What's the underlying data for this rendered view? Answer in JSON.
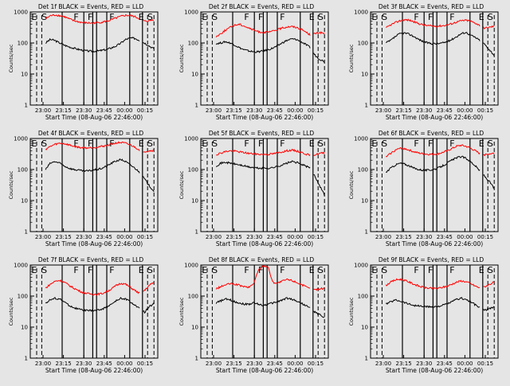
{
  "colors": {
    "background": "#e5e5e5",
    "events": "#000000",
    "lld": "#ff0000",
    "frame": "#000000"
  },
  "layout": {
    "rows": 3,
    "cols": 3
  },
  "segment_marks": [
    "E",
    "S",
    "F",
    "F",
    "F",
    "E",
    "S"
  ],
  "chart_data": [
    {
      "type": "line",
      "title": "Det 1f BLACK = Events, RED = LLD",
      "xlabel": "Start Time (08-Aug-06 22:46:00)",
      "ylabel": "Counts/sec",
      "xticklabels": [
        "23:00",
        "23:15",
        "23:30",
        "23:45",
        "00:00",
        "00:15"
      ],
      "yticklabels": [
        "1",
        "10",
        "100",
        "1000"
      ],
      "yscale": "log",
      "ylim": [
        1,
        1000
      ],
      "series": [
        {
          "name": "Events",
          "color": "#000000",
          "profile": [
            100,
            130,
            120,
            100,
            85,
            75,
            68,
            62,
            58,
            55,
            54,
            55,
            58,
            62,
            70,
            80,
            100,
            130,
            145,
            140,
            120,
            100,
            80,
            65
          ]
        },
        {
          "name": "LLD",
          "color": "#ff0000",
          "profile": [
            600,
            750,
            800,
            760,
            700,
            600,
            520,
            480,
            450,
            440,
            440,
            450,
            470,
            500,
            560,
            640,
            720,
            780,
            760,
            700,
            600,
            500,
            520,
            560
          ]
        }
      ]
    },
    {
      "type": "line",
      "title": "Det 2f BLACK = Events, RED = LLD",
      "xlabel": "Start Time (08-Aug-06 22:46:00)",
      "ylabel": "Counts/sec",
      "xticklabels": [
        "23:00",
        "23:15",
        "23:30",
        "23:45",
        "00:00",
        "00:15"
      ],
      "yticklabels": [
        "1",
        "10",
        "100",
        "1000"
      ],
      "yscale": "log",
      "ylim": [
        1,
        1000
      ],
      "series": [
        {
          "name": "Events",
          "color": "#000000",
          "profile": [
            95,
            100,
            110,
            100,
            85,
            70,
            60,
            55,
            52,
            52,
            55,
            60,
            68,
            80,
            100,
            120,
            135,
            130,
            110,
            90,
            70,
            40,
            30,
            25
          ]
        },
        {
          "name": "LLD",
          "color": "#ff0000",
          "profile": [
            160,
            200,
            260,
            320,
            380,
            400,
            350,
            300,
            260,
            230,
            220,
            220,
            240,
            270,
            300,
            330,
            340,
            320,
            280,
            230,
            180,
            200,
            220,
            200
          ]
        }
      ]
    },
    {
      "type": "line",
      "title": "Det 3f BLACK = Events, RED = LLD",
      "xlabel": "Start Time (08-Aug-06 22:46:00)",
      "ylabel": "Counts/sec",
      "xticklabels": [
        "23:00",
        "23:15",
        "23:30",
        "23:45",
        "00:00",
        "00:15"
      ],
      "yticklabels": [
        "1",
        "10",
        "100",
        "1000"
      ],
      "yscale": "log",
      "ylim": [
        1,
        1000
      ],
      "series": [
        {
          "name": "Events",
          "color": "#000000",
          "profile": [
            100,
            120,
            160,
            200,
            210,
            190,
            160,
            130,
            110,
            100,
            95,
            95,
            100,
            110,
            130,
            160,
            200,
            220,
            180,
            150,
            120,
            90,
            60,
            40
          ]
        },
        {
          "name": "LLD",
          "color": "#ff0000",
          "profile": [
            300,
            380,
            450,
            520,
            560,
            540,
            480,
            420,
            380,
            360,
            350,
            350,
            360,
            380,
            420,
            470,
            520,
            540,
            500,
            440,
            360,
            300,
            320,
            350
          ]
        }
      ]
    },
    {
      "type": "line",
      "title": "Det 4f BLACK = Events, RED = LLD",
      "xlabel": "Start Time (08-Aug-06 22:46:00)",
      "ylabel": "Counts/sec",
      "xticklabels": [
        "23:00",
        "23:15",
        "23:30",
        "23:45",
        "00:00",
        "00:15"
      ],
      "yticklabels": [
        "1",
        "10",
        "100",
        "1000"
      ],
      "yscale": "log",
      "ylim": [
        1,
        1000
      ],
      "series": [
        {
          "name": "Events",
          "color": "#000000",
          "profile": [
            100,
            160,
            180,
            160,
            130,
            110,
            100,
            95,
            90,
            90,
            95,
            100,
            110,
            130,
            160,
            190,
            210,
            180,
            140,
            110,
            80,
            50,
            30,
            20
          ]
        },
        {
          "name": "LLD",
          "color": "#ff0000",
          "profile": [
            450,
            550,
            650,
            700,
            680,
            620,
            560,
            520,
            500,
            500,
            510,
            530,
            560,
            600,
            660,
            720,
            740,
            700,
            620,
            520,
            420,
            380,
            400,
            420
          ]
        }
      ]
    },
    {
      "type": "line",
      "title": "Det 5f BLACK = Events, RED = LLD",
      "xlabel": "Start Time (08-Aug-06 22:46:00)",
      "ylabel": "Counts/sec",
      "xticklabels": [
        "23:00",
        "23:15",
        "23:30",
        "23:45",
        "00:00",
        "00:15"
      ],
      "yticklabels": [
        "1",
        "10",
        "100",
        "1000"
      ],
      "yscale": "log",
      "ylim": [
        1,
        1000
      ],
      "series": [
        {
          "name": "Events",
          "color": "#000000",
          "profile": [
            130,
            160,
            170,
            160,
            150,
            140,
            130,
            120,
            115,
            110,
            110,
            110,
            115,
            125,
            140,
            160,
            180,
            170,
            150,
            130,
            110,
            60,
            30,
            15
          ]
        },
        {
          "name": "LLD",
          "color": "#ff0000",
          "profile": [
            300,
            340,
            380,
            400,
            390,
            370,
            350,
            330,
            320,
            310,
            310,
            310,
            320,
            340,
            370,
            400,
            420,
            400,
            360,
            320,
            280,
            300,
            330,
            350
          ]
        }
      ]
    },
    {
      "type": "line",
      "title": "Det 6f BLACK = Events, RED = LLD",
      "xlabel": "Start Time (08-Aug-06 22:46:00)",
      "ylabel": "Counts/sec",
      "xticklabels": [
        "23:00",
        "23:15",
        "23:30",
        "23:45",
        "00:00",
        "00:15"
      ],
      "yticklabels": [
        "1",
        "10",
        "100",
        "1000"
      ],
      "yscale": "log",
      "ylim": [
        1,
        1000
      ],
      "series": [
        {
          "name": "Events",
          "color": "#000000",
          "profile": [
            80,
            110,
            140,
            160,
            150,
            130,
            110,
            100,
            95,
            95,
            100,
            110,
            130,
            160,
            200,
            240,
            260,
            230,
            180,
            130,
            90,
            60,
            40,
            25
          ]
        },
        {
          "name": "LLD",
          "color": "#ff0000",
          "profile": [
            250,
            330,
            420,
            480,
            470,
            420,
            370,
            340,
            320,
            310,
            310,
            320,
            350,
            400,
            470,
            560,
            600,
            560,
            480,
            400,
            320,
            300,
            320,
            340
          ]
        }
      ]
    },
    {
      "type": "line",
      "title": "Det 7f BLACK = Events, RED = LLD",
      "xlabel": "Start Time (08-Aug-06 22:46:00)",
      "ylabel": "Counts/sec",
      "xticklabels": [
        "23:00",
        "23:15",
        "23:30",
        "23:45",
        "00:00",
        "00:15"
      ],
      "yticklabels": [
        "1",
        "10",
        "100",
        "1000"
      ],
      "yscale": "log",
      "ylim": [
        1,
        1000
      ],
      "series": [
        {
          "name": "Events",
          "color": "#000000",
          "profile": [
            60,
            75,
            85,
            80,
            65,
            50,
            42,
            38,
            35,
            34,
            34,
            35,
            38,
            45,
            55,
            70,
            85,
            80,
            65,
            50,
            38,
            30,
            45,
            60
          ]
        },
        {
          "name": "LLD",
          "color": "#ff0000",
          "profile": [
            180,
            240,
            300,
            320,
            280,
            220,
            180,
            150,
            130,
            120,
            115,
            115,
            120,
            140,
            170,
            220,
            260,
            240,
            190,
            150,
            120,
            150,
            220,
            280
          ]
        }
      ]
    },
    {
      "type": "line",
      "title": "Det 8f BLACK = Events, RED = LLD",
      "xlabel": "Start Time (08-Aug-06 22:46:00)",
      "ylabel": "Counts/sec",
      "xticklabels": [
        "23:00",
        "23:15",
        "23:30",
        "23:45",
        "00:00",
        "00:15"
      ],
      "yticklabels": [
        "1",
        "10",
        "100",
        "1000"
      ],
      "yscale": "log",
      "ylim": [
        1,
        1000
      ],
      "series": [
        {
          "name": "Events",
          "color": "#000000",
          "profile": [
            60,
            70,
            80,
            75,
            65,
            60,
            55,
            55,
            60,
            55,
            50,
            55,
            60,
            65,
            75,
            85,
            80,
            70,
            60,
            50,
            40,
            30,
            25,
            20
          ]
        },
        {
          "name": "LLD",
          "color": "#ff0000",
          "profile": [
            170,
            200,
            230,
            250,
            240,
            220,
            200,
            190,
            260,
            700,
            950,
            900,
            280,
            260,
            300,
            340,
            320,
            280,
            240,
            200,
            170,
            160,
            170,
            180
          ]
        }
      ]
    },
    {
      "type": "line",
      "title": "Det 9f BLACK = Events, RED = LLD",
      "xlabel": "Start Time (08-Aug-06 22:46:00)",
      "ylabel": "Counts/sec",
      "xticklabels": [
        "23:00",
        "23:15",
        "23:30",
        "23:45",
        "00:00",
        "00:15"
      ],
      "yticklabels": [
        "1",
        "10",
        "100",
        "1000"
      ],
      "yscale": "log",
      "ylim": [
        1,
        1000
      ],
      "series": [
        {
          "name": "Events",
          "color": "#000000",
          "profile": [
            55,
            65,
            75,
            70,
            62,
            55,
            50,
            48,
            46,
            45,
            45,
            46,
            50,
            56,
            65,
            78,
            85,
            78,
            65,
            52,
            42,
            35,
            40,
            45
          ]
        },
        {
          "name": "LLD",
          "color": "#ff0000",
          "profile": [
            220,
            280,
            330,
            350,
            320,
            280,
            240,
            210,
            190,
            180,
            175,
            178,
            190,
            210,
            240,
            280,
            310,
            290,
            250,
            210,
            180,
            200,
            240,
            280
          ]
        }
      ]
    }
  ]
}
